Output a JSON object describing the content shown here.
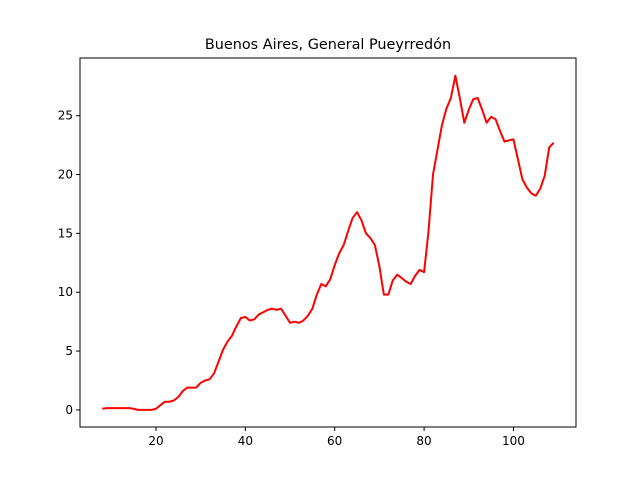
{
  "chart_data": {
    "type": "line",
    "title": "Buenos Aires, General Pueyrredón",
    "xlabel": "",
    "ylabel": "",
    "xlim": [
      3,
      114
    ],
    "ylim": [
      -1.45,
      29.9
    ],
    "xticks": [
      20,
      40,
      60,
      80,
      100
    ],
    "yticks": [
      0,
      5,
      10,
      15,
      20,
      25
    ],
    "grid": false,
    "series": [
      {
        "color": "#ff0000",
        "x": [
          8,
          9,
          10,
          11,
          12,
          13,
          14,
          15,
          16,
          17,
          18,
          19,
          20,
          21,
          22,
          23,
          24,
          25,
          26,
          27,
          28,
          29,
          30,
          31,
          32,
          33,
          34,
          35,
          36,
          37,
          38,
          39,
          40,
          41,
          42,
          43,
          44,
          45,
          46,
          47,
          48,
          49,
          50,
          51,
          52,
          53,
          54,
          55,
          56,
          57,
          58,
          59,
          60,
          61,
          62,
          63,
          64,
          65,
          66,
          67,
          68,
          69,
          70,
          71,
          72,
          73,
          74,
          75,
          76,
          77,
          78,
          79,
          80,
          81,
          82,
          83,
          84,
          85,
          86,
          87,
          88,
          89,
          90,
          91,
          92,
          93,
          94,
          95,
          96,
          97,
          98,
          99,
          100,
          101,
          102,
          103,
          104,
          105,
          106,
          107,
          108,
          109
        ],
        "y": [
          0.1,
          0.15,
          0.15,
          0.15,
          0.15,
          0.15,
          0.15,
          0.1,
          0.0,
          0.0,
          0.0,
          0.0,
          0.1,
          0.4,
          0.7,
          0.7,
          0.8,
          1.1,
          1.6,
          1.9,
          1.9,
          1.9,
          2.3,
          2.5,
          2.6,
          3.1,
          4.1,
          5.1,
          5.8,
          6.3,
          7.1,
          7.8,
          7.9,
          7.6,
          7.7,
          8.1,
          8.3,
          8.5,
          8.6,
          8.5,
          8.6,
          8.0,
          7.4,
          7.5,
          7.4,
          7.6,
          8.0,
          8.6,
          9.8,
          10.7,
          10.5,
          11.1,
          12.3,
          13.3,
          14.0,
          15.2,
          16.3,
          16.8,
          16.1,
          15.0,
          14.6,
          14.0,
          12.2,
          9.8,
          9.8,
          11.0,
          11.5,
          11.2,
          10.9,
          10.7,
          11.4,
          11.9,
          11.7,
          15.2,
          20.0,
          22.1,
          24.2,
          25.6,
          26.5,
          28.4,
          26.5,
          24.4,
          25.5,
          26.4,
          26.5,
          25.5,
          24.4,
          24.9,
          24.7,
          23.7,
          22.8,
          22.9,
          23.0,
          21.3,
          19.6,
          18.9,
          18.4,
          18.2,
          18.8,
          19.9,
          22.3,
          22.7
        ]
      }
    ]
  }
}
